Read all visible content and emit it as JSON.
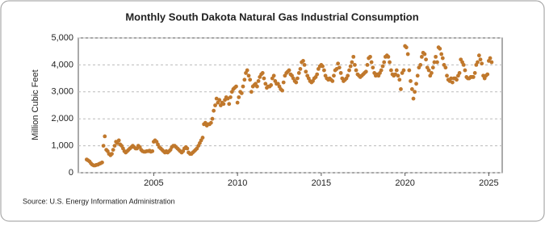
{
  "chart_data": {
    "type": "scatter",
    "title": "Monthly South Dakota Natural Gas Industrial Consumption",
    "ylabel": "Million Cubic Feet",
    "source": "Source: U.S. Energy Information Administration",
    "color": "#c0782c",
    "grid": true,
    "xlim": [
      2000.5,
      2025.8
    ],
    "ylim": [
      0,
      5000
    ],
    "xticks": [
      2005,
      2010,
      2015,
      2020,
      2025
    ],
    "yticks": [
      0,
      {
        "value": 1000,
        "label": "1,000"
      },
      {
        "value": 2000,
        "label": "2,000"
      },
      {
        "value": 3000,
        "label": "3,000"
      },
      {
        "value": 4000,
        "label": "4,000"
      },
      {
        "value": 5000,
        "label": "5,000"
      }
    ],
    "x": [
      2001,
      2001.08,
      2001.17,
      2001.25,
      2001.33,
      2001.42,
      2001.5,
      2001.58,
      2001.67,
      2001.75,
      2001.83,
      2001.92,
      2002,
      2002.08,
      2002.17,
      2002.25,
      2002.33,
      2002.42,
      2002.5,
      2002.58,
      2002.67,
      2002.75,
      2002.83,
      2002.92,
      2003,
      2003.08,
      2003.17,
      2003.25,
      2003.33,
      2003.42,
      2003.5,
      2003.58,
      2003.67,
      2003.75,
      2003.83,
      2003.92,
      2004,
      2004.08,
      2004.17,
      2004.25,
      2004.33,
      2004.42,
      2004.5,
      2004.58,
      2004.67,
      2004.75,
      2004.83,
      2004.92,
      2005,
      2005.08,
      2005.17,
      2005.25,
      2005.33,
      2005.42,
      2005.5,
      2005.58,
      2005.67,
      2005.75,
      2005.83,
      2005.92,
      2006,
      2006.08,
      2006.17,
      2006.25,
      2006.33,
      2006.42,
      2006.5,
      2006.58,
      2006.67,
      2006.75,
      2006.83,
      2006.92,
      2007,
      2007.08,
      2007.17,
      2007.25,
      2007.33,
      2007.42,
      2007.5,
      2007.58,
      2007.67,
      2007.75,
      2007.83,
      2007.92,
      2008,
      2008.08,
      2008.17,
      2008.25,
      2008.33,
      2008.42,
      2008.5,
      2008.58,
      2008.67,
      2008.75,
      2008.83,
      2008.92,
      2009,
      2009.08,
      2009.17,
      2009.25,
      2009.33,
      2009.42,
      2009.5,
      2009.58,
      2009.67,
      2009.75,
      2009.83,
      2009.92,
      2010,
      2010.08,
      2010.17,
      2010.25,
      2010.33,
      2010.42,
      2010.5,
      2010.58,
      2010.67,
      2010.75,
      2010.83,
      2010.92,
      2011,
      2011.08,
      2011.17,
      2011.25,
      2011.33,
      2011.42,
      2011.5,
      2011.58,
      2011.67,
      2011.75,
      2011.83,
      2011.92,
      2012,
      2012.08,
      2012.17,
      2012.25,
      2012.33,
      2012.42,
      2012.5,
      2012.58,
      2012.67,
      2012.75,
      2012.83,
      2012.92,
      2013,
      2013.08,
      2013.17,
      2013.25,
      2013.33,
      2013.42,
      2013.5,
      2013.58,
      2013.67,
      2013.75,
      2013.83,
      2013.92,
      2014,
      2014.08,
      2014.17,
      2014.25,
      2014.33,
      2014.42,
      2014.5,
      2014.58,
      2014.67,
      2014.75,
      2014.83,
      2014.92,
      2015,
      2015.08,
      2015.17,
      2015.25,
      2015.33,
      2015.42,
      2015.5,
      2015.58,
      2015.67,
      2015.75,
      2015.83,
      2015.92,
      2016,
      2016.08,
      2016.17,
      2016.25,
      2016.33,
      2016.42,
      2016.5,
      2016.58,
      2016.67,
      2016.75,
      2016.83,
      2016.92,
      2017,
      2017.08,
      2017.17,
      2017.25,
      2017.33,
      2017.42,
      2017.5,
      2017.58,
      2017.67,
      2017.75,
      2017.83,
      2017.92,
      2018,
      2018.08,
      2018.17,
      2018.25,
      2018.33,
      2018.42,
      2018.5,
      2018.58,
      2018.67,
      2018.75,
      2018.83,
      2018.92,
      2019,
      2019.08,
      2019.17,
      2019.25,
      2019.33,
      2019.42,
      2019.5,
      2019.58,
      2019.67,
      2019.75,
      2019.83,
      2019.92,
      2020,
      2020.08,
      2020.17,
      2020.25,
      2020.33,
      2020.42,
      2020.5,
      2020.58,
      2020.67,
      2020.75,
      2020.83,
      2020.92,
      2021,
      2021.08,
      2021.17,
      2021.25,
      2021.33,
      2021.42,
      2021.5,
      2021.58,
      2021.67,
      2021.75,
      2021.83,
      2021.92,
      2022,
      2022.08,
      2022.17,
      2022.25,
      2022.33,
      2022.42,
      2022.5,
      2022.58,
      2022.67,
      2022.75,
      2022.83,
      2022.92,
      2023,
      2023.08,
      2023.17,
      2023.25,
      2023.33,
      2023.42,
      2023.5,
      2023.58,
      2023.67,
      2023.75,
      2023.83,
      2023.92,
      2024,
      2024.08,
      2024.17,
      2024.25,
      2024.33,
      2024.42,
      2024.5,
      2024.58,
      2024.67,
      2024.75,
      2024.83,
      2024.92,
      2025,
      2025.08,
      2025.17
    ],
    "values": [
      490,
      460,
      420,
      350,
      300,
      270,
      270,
      290,
      300,
      330,
      350,
      380,
      1000,
      1350,
      850,
      800,
      700,
      650,
      700,
      850,
      1000,
      1150,
      1100,
      1200,
      1050,
      1000,
      900,
      800,
      750,
      800,
      850,
      900,
      950,
      1000,
      950,
      900,
      900,
      1000,
      950,
      850,
      800,
      780,
      780,
      800,
      800,
      820,
      780,
      800,
      1150,
      1200,
      1150,
      1050,
      950,
      900,
      850,
      800,
      750,
      800,
      750,
      800,
      850,
      950,
      1000,
      1000,
      950,
      900,
      850,
      800,
      750,
      800,
      900,
      950,
      900,
      750,
      700,
      700,
      750,
      800,
      850,
      900,
      1000,
      1100,
      1200,
      1300,
      1800,
      1850,
      1750,
      1800,
      1800,
      1850,
      2000,
      2300,
      2500,
      2750,
      2600,
      2700,
      2500,
      2600,
      2550,
      2700,
      2800,
      2750,
      2550,
      2800,
      3000,
      3100,
      3150,
      3200,
      2600,
      2800,
      3000,
      2950,
      3200,
      3450,
      3700,
      3800,
      3600,
      3450,
      3000,
      3200,
      3250,
      3300,
      3200,
      3400,
      3550,
      3650,
      3700,
      3500,
      3300,
      3150,
      3200,
      3200,
      3250,
      3500,
      3600,
      3400,
      3300,
      3300,
      3200,
      3100,
      3050,
      3350,
      3600,
      3700,
      3750,
      3800,
      3650,
      3600,
      3500,
      3400,
      3350,
      3500,
      3700,
      3850,
      4100,
      4150,
      4000,
      3750,
      3600,
      3500,
      3400,
      3350,
      3400,
      3500,
      3550,
      3650,
      3850,
      3950,
      4000,
      3950,
      3800,
      3600,
      3500,
      3450,
      3500,
      3450,
      3400,
      3600,
      3800,
      3850,
      4050,
      3900,
      3700,
      3500,
      3400,
      3450,
      3500,
      3600,
      3800,
      3950,
      4100,
      4300,
      4000,
      3800,
      3650,
      3600,
      3550,
      3600,
      3650,
      3700,
      3750,
      4000,
      4250,
      4300,
      4100,
      3900,
      3700,
      3600,
      3650,
      3600,
      3700,
      3800,
      3950,
      4100,
      4300,
      4350,
      4300,
      4100,
      3800,
      3650,
      3600,
      3650,
      3800,
      3600,
      3450,
      3100,
      3700,
      3800,
      4700,
      4650,
      4400,
      3800,
      3400,
      3100,
      2750,
      3000,
      3300,
      3600,
      3900,
      4000,
      4300,
      4450,
      4400,
      4200,
      3900,
      3800,
      3600,
      3700,
      3900,
      4100,
      4300,
      4100,
      4650,
      4600,
      4400,
      4250,
      4000,
      3900,
      3600,
      3450,
      3400,
      3500,
      3350,
      3500,
      3500,
      3450,
      3600,
      3700,
      4200,
      4100,
      4000,
      3800,
      3550,
      3500,
      3500,
      3550,
      3550,
      3550,
      3700,
      4000,
      4100,
      4350,
      4200,
      4050,
      3600,
      3500,
      3600,
      3650,
      4150,
      4250,
      4100
    ]
  }
}
